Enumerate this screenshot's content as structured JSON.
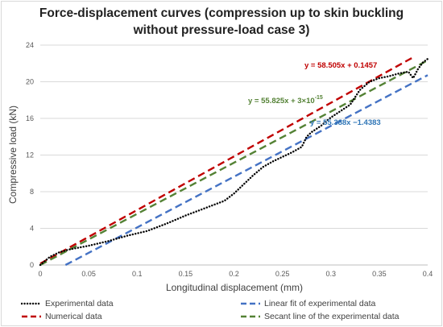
{
  "title_line1": "Force-displacement curves (compression up to skin buckling",
  "title_line2": "without pressure-load case 3)",
  "chart_data": {
    "type": "line",
    "xlabel": "Longitudinal displacement (mm)",
    "ylabel": "Compressive load (kN)",
    "xlim": [
      0,
      0.4
    ],
    "ylim": [
      0,
      24
    ],
    "xticks": [
      "0",
      "0.05",
      "0.1",
      "0.15",
      "0.2",
      "0.25",
      "0.3",
      "0.35",
      "0.4"
    ],
    "yticks": [
      "0",
      "4",
      "8",
      "12",
      "16",
      "20",
      "24"
    ],
    "grid": "horizontal",
    "legend_position": "bottom",
    "series": [
      {
        "name": "Experimental data",
        "style": "dotted",
        "color": "#000000",
        "x": [
          0,
          0.01,
          0.02,
          0.03,
          0.05,
          0.07,
          0.09,
          0.11,
          0.13,
          0.15,
          0.17,
          0.19,
          0.2,
          0.21,
          0.22,
          0.23,
          0.24,
          0.25,
          0.26,
          0.27,
          0.275,
          0.28,
          0.29,
          0.3,
          0.31,
          0.32,
          0.325,
          0.33,
          0.34,
          0.35,
          0.36,
          0.37,
          0.38,
          0.385,
          0.39,
          0.395,
          0.4
        ],
        "y": [
          0,
          0.9,
          1.4,
          1.7,
          2.1,
          2.6,
          3.2,
          3.7,
          4.5,
          5.4,
          6.2,
          7.0,
          7.8,
          8.8,
          9.8,
          10.7,
          11.3,
          11.8,
          12.3,
          12.9,
          14.0,
          14.5,
          15.2,
          16.1,
          16.8,
          17.5,
          18.3,
          19.1,
          20.0,
          20.4,
          20.6,
          20.9,
          21.1,
          20.4,
          21.4,
          22.1,
          22.5
        ]
      },
      {
        "name": "Numerical data",
        "style": "dashed",
        "color": "#c00000",
        "slope": 58.505,
        "intercept": 0.1457,
        "x_range": [
          0,
          0.385
        ]
      },
      {
        "name": "Linear fit of experimental data",
        "style": "dashed",
        "color": "#4472c4",
        "slope": 55.388,
        "intercept": -1.4383,
        "x_range": [
          0.026,
          0.4
        ]
      },
      {
        "name": "Secant line of the experimental data",
        "style": "dashed",
        "color": "#548235",
        "slope": 55.825,
        "intercept": 0,
        "x_range": [
          0,
          0.4
        ]
      }
    ],
    "annotations": [
      {
        "text": "y = 58.505x + 0.1457",
        "color": "#c00000"
      },
      {
        "text": "y = 55.825x + 3×10",
        "superscript": "-15",
        "color": "#548235"
      },
      {
        "text": "y = 55.388x −1.4383",
        "color": "#2e75b6"
      }
    ]
  }
}
